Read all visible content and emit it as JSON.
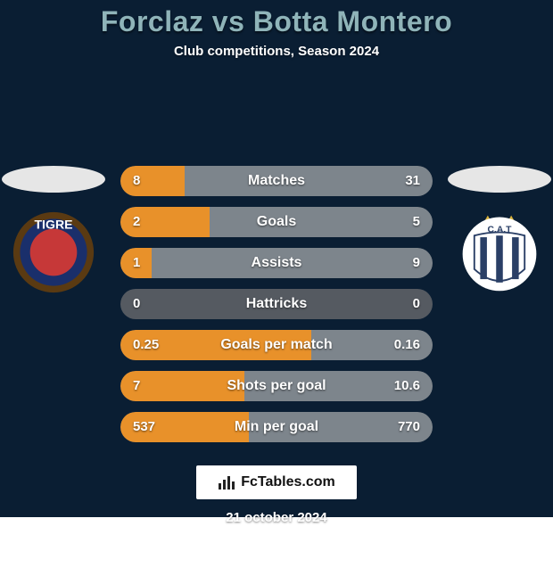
{
  "background_color": "#0a1e33",
  "title": {
    "text": "Forclaz vs Botta Montero",
    "color": "#8fb4b9",
    "fontsize": 32
  },
  "subtitle": {
    "text": "Club competitions, Season 2024",
    "color": "#ffffff",
    "fontsize": 15
  },
  "stats": {
    "row_bg": "#555a61",
    "bar_left_color": "#e8912a",
    "bar_right_color": "#7d858c",
    "label_color": "#ffffff",
    "value_color": "#ffffff",
    "label_fontsize": 16,
    "value_fontsize": 15,
    "rows": [
      {
        "label": "Matches",
        "left_val": "8",
        "right_val": "31",
        "left_pct": 20.5,
        "right_pct": 79.5
      },
      {
        "label": "Goals",
        "left_val": "2",
        "right_val": "5",
        "left_pct": 28.6,
        "right_pct": 71.4
      },
      {
        "label": "Assists",
        "left_val": "1",
        "right_val": "9",
        "left_pct": 10.0,
        "right_pct": 90.0
      },
      {
        "label": "Hattricks",
        "left_val": "0",
        "right_val": "0",
        "left_pct": 0,
        "right_pct": 0
      },
      {
        "label": "Goals per match",
        "left_val": "0.25",
        "right_val": "0.16",
        "left_pct": 61.0,
        "right_pct": 39.0
      },
      {
        "label": "Shots per goal",
        "left_val": "7",
        "right_val": "10.6",
        "left_pct": 39.8,
        "right_pct": 60.2
      },
      {
        "label": "Min per goal",
        "left_val": "537",
        "right_val": "770",
        "left_pct": 41.1,
        "right_pct": 58.9
      }
    ]
  },
  "silhouette_color": "#e6e6e6",
  "crests": {
    "left": {
      "name": "tigre-crest",
      "outer": "#5a3a12",
      "band": "#1a2f6b",
      "center": "#c63838",
      "text": "TIGRE",
      "text_color": "#ffffff"
    },
    "right": {
      "name": "talleres-crest",
      "outer": "#ffffff",
      "shield_fill": "#ffffff",
      "stripe": "#2a3f66",
      "text": "C.A.T",
      "text_color": "#2a3f66",
      "star": "#d9b23a"
    }
  },
  "logo": {
    "text": "FcTables.com",
    "icon_color": "#222222"
  },
  "date": {
    "text": "21 october 2024",
    "color": "#ffffff",
    "fontsize": 15
  }
}
